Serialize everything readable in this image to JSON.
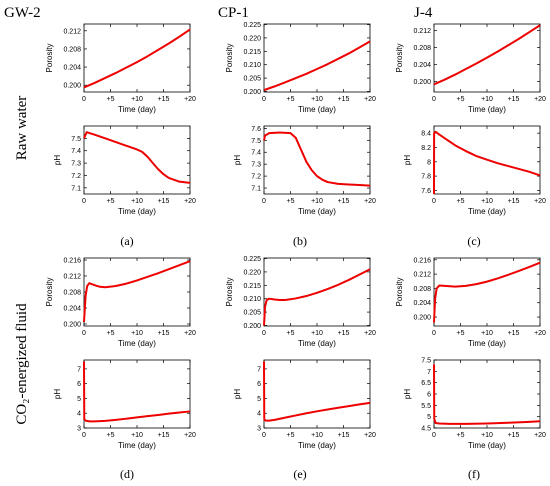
{
  "figure": {
    "columns": [
      "GW-2",
      "CP-1",
      "J-4"
    ],
    "rows": [
      "Raw water",
      "CO₂-energized fluid"
    ],
    "panel_labels": [
      "(a)",
      "(b)",
      "(c)",
      "(d)",
      "(e)",
      "(f)"
    ],
    "line_color": "#ee0000"
  },
  "chart_data": [
    {
      "type": "line",
      "panel": "(a)",
      "column": "GW-2",
      "row": "Raw water",
      "quantity": "Porosity",
      "xlabel": "Time (day)",
      "ylabel": "Porosity",
      "xlim": [
        0,
        20
      ],
      "ylim": [
        0.1985,
        0.2135
      ],
      "xticks": [
        0,
        5,
        10,
        15,
        20
      ],
      "xtick_labels": [
        "0",
        "+5",
        "+10",
        "+15",
        "+20"
      ],
      "yticks": [
        0.2,
        0.204,
        0.208,
        0.212
      ],
      "ytick_labels": [
        "0.200",
        "0.204",
        "0.208",
        "0.212"
      ],
      "x": [
        0,
        2,
        4,
        6,
        8,
        10,
        12,
        14,
        16,
        18,
        20
      ],
      "y": [
        0.1995,
        0.2005,
        0.2016,
        0.2027,
        0.2039,
        0.2051,
        0.2064,
        0.2078,
        0.2092,
        0.2107,
        0.2123
      ]
    },
    {
      "type": "line",
      "panel": "(a)",
      "column": "GW-2",
      "row": "Raw water",
      "quantity": "pH",
      "xlabel": "Time (day)",
      "ylabel": "pH",
      "xlim": [
        0,
        20
      ],
      "ylim": [
        7.05,
        7.6
      ],
      "xticks": [
        0,
        5,
        10,
        15,
        20
      ],
      "xtick_labels": [
        "0",
        "+5",
        "+10",
        "+15",
        "+20"
      ],
      "yticks": [
        7.1,
        7.2,
        7.3,
        7.4,
        7.5
      ],
      "ytick_labels": [
        "7.1",
        "7.2",
        "7.3",
        "7.4",
        "7.5"
      ],
      "x": [
        0,
        0.5,
        2,
        4,
        6,
        8,
        10,
        11,
        12,
        13,
        14,
        15,
        16,
        18,
        20
      ],
      "y": [
        7.5,
        7.55,
        7.53,
        7.5,
        7.47,
        7.44,
        7.41,
        7.39,
        7.35,
        7.3,
        7.25,
        7.21,
        7.18,
        7.15,
        7.14
      ]
    },
    {
      "type": "line",
      "panel": "(b)",
      "column": "CP-1",
      "row": "Raw water",
      "quantity": "Porosity",
      "xlabel": "Time (day)",
      "ylabel": "Porosity",
      "xlim": [
        0,
        20
      ],
      "ylim": [
        0.1998,
        0.2252
      ],
      "xticks": [
        0,
        5,
        10,
        15,
        20
      ],
      "xtick_labels": [
        "0",
        "+5",
        "+10",
        "+15",
        "+20"
      ],
      "yticks": [
        0.2,
        0.205,
        0.21,
        0.215,
        0.22,
        0.225
      ],
      "ytick_labels": [
        "0.200",
        "0.205",
        "0.210",
        "0.215",
        "0.220",
        "0.225"
      ],
      "x": [
        0,
        2,
        4,
        6,
        8,
        10,
        12,
        14,
        16,
        18,
        20
      ],
      "y": [
        0.2005,
        0.2019,
        0.2034,
        0.205,
        0.2066,
        0.2084,
        0.2102,
        0.2122,
        0.2142,
        0.2164,
        0.2187
      ]
    },
    {
      "type": "line",
      "panel": "(b)",
      "column": "CP-1",
      "row": "Raw water",
      "quantity": "pH",
      "xlabel": "Time (day)",
      "ylabel": "pH",
      "xlim": [
        0,
        20
      ],
      "ylim": [
        7.05,
        7.62
      ],
      "xticks": [
        0,
        5,
        10,
        15,
        20
      ],
      "xtick_labels": [
        "0",
        "+5",
        "+10",
        "+15",
        "+20"
      ],
      "yticks": [
        7.1,
        7.2,
        7.3,
        7.4,
        7.5,
        7.6
      ],
      "ytick_labels": [
        "7.1",
        "7.2",
        "7.3",
        "7.4",
        "7.5",
        "7.6"
      ],
      "x": [
        0,
        0.2,
        1,
        3,
        5,
        6,
        7,
        8,
        9,
        10,
        11,
        12,
        14,
        16,
        18,
        20
      ],
      "y": [
        7.5,
        7.54,
        7.56,
        7.565,
        7.56,
        7.52,
        7.42,
        7.32,
        7.25,
        7.2,
        7.17,
        7.15,
        7.135,
        7.13,
        7.125,
        7.12
      ]
    },
    {
      "type": "line",
      "panel": "(c)",
      "column": "J-4",
      "row": "Raw water",
      "quantity": "Porosity",
      "xlabel": "Time (day)",
      "ylabel": "Porosity",
      "xlim": [
        0,
        20
      ],
      "ylim": [
        0.1975,
        0.2135
      ],
      "xticks": [
        0,
        5,
        10,
        15,
        20
      ],
      "xtick_labels": [
        "0",
        "+5",
        "+10",
        "+15",
        "+20"
      ],
      "yticks": [
        0.2,
        0.204,
        0.208,
        0.212
      ],
      "ytick_labels": [
        "0.200",
        "0.204",
        "0.208",
        "0.212"
      ],
      "x": [
        0,
        2,
        4,
        6,
        8,
        10,
        12,
        14,
        16,
        18,
        20
      ],
      "y": [
        0.1993,
        0.2004,
        0.2016,
        0.2029,
        0.2042,
        0.2056,
        0.207,
        0.2085,
        0.21,
        0.2116,
        0.2132
      ]
    },
    {
      "type": "line",
      "panel": "(c)",
      "column": "J-4",
      "row": "Raw water",
      "quantity": "pH",
      "xlabel": "Time (day)",
      "ylabel": "pH",
      "xlim": [
        0,
        20
      ],
      "ylim": [
        7.55,
        8.5
      ],
      "xticks": [
        0,
        5,
        10,
        15,
        20
      ],
      "xtick_labels": [
        "0",
        "+5",
        "+10",
        "+15",
        "+20"
      ],
      "yticks": [
        7.6,
        7.8,
        8.0,
        8.2,
        8.4
      ],
      "ytick_labels": [
        "7.6",
        "7.8",
        "8",
        "8.2",
        "8.4"
      ],
      "x": [
        0,
        0.02,
        0.3,
        1,
        2,
        4,
        6,
        8,
        10,
        12,
        14,
        16,
        18,
        20
      ],
      "y": [
        7.55,
        8.4,
        8.42,
        8.38,
        8.33,
        8.23,
        8.15,
        8.08,
        8.03,
        7.98,
        7.94,
        7.9,
        7.86,
        7.81
      ]
    },
    {
      "type": "line",
      "panel": "(d)",
      "column": "GW-2",
      "row": "CO₂-energized fluid",
      "quantity": "Porosity",
      "xlabel": "Time (day)",
      "ylabel": "Porosity",
      "xlim": [
        0,
        20
      ],
      "ylim": [
        0.1995,
        0.2165
      ],
      "xticks": [
        0,
        5,
        10,
        15,
        20
      ],
      "xtick_labels": [
        "0",
        "+5",
        "+10",
        "+15",
        "+20"
      ],
      "yticks": [
        0.2,
        0.204,
        0.208,
        0.212,
        0.216
      ],
      "ytick_labels": [
        "0.200",
        "0.204",
        "0.208",
        "0.212",
        "0.216"
      ],
      "x": [
        0,
        0.3,
        0.6,
        1,
        2,
        3,
        4,
        6,
        8,
        10,
        12,
        14,
        16,
        18,
        20
      ],
      "y": [
        0.2005,
        0.207,
        0.2095,
        0.2102,
        0.2097,
        0.2093,
        0.2092,
        0.2095,
        0.2101,
        0.2109,
        0.2118,
        0.2127,
        0.2137,
        0.2147,
        0.2157
      ]
    },
    {
      "type": "line",
      "panel": "(d)",
      "column": "GW-2",
      "row": "CO₂-energized fluid",
      "quantity": "pH",
      "xlabel": "Time (day)",
      "ylabel": "pH",
      "xlim": [
        0,
        20
      ],
      "ylim": [
        3,
        7.6
      ],
      "xticks": [
        0,
        5,
        10,
        15,
        20
      ],
      "xtick_labels": [
        "0",
        "+5",
        "+10",
        "+15",
        "+20"
      ],
      "yticks": [
        3,
        4,
        5,
        6,
        7
      ],
      "ytick_labels": [
        "3",
        "4",
        "5",
        "6",
        "7"
      ],
      "x": [
        0,
        0.05,
        0.3,
        1,
        2,
        4,
        6,
        8,
        10,
        12,
        14,
        16,
        18,
        20
      ],
      "y": [
        7.5,
        3.6,
        3.5,
        3.45,
        3.45,
        3.48,
        3.55,
        3.63,
        3.72,
        3.8,
        3.88,
        3.97,
        4.05,
        4.12
      ]
    },
    {
      "type": "line",
      "panel": "(e)",
      "column": "CP-1",
      "row": "CO₂-energized fluid",
      "quantity": "Porosity",
      "xlabel": "Time (day)",
      "ylabel": "Porosity",
      "xlim": [
        0,
        20
      ],
      "ylim": [
        0.1998,
        0.2252
      ],
      "xticks": [
        0,
        5,
        10,
        15,
        20
      ],
      "xtick_labels": [
        "0",
        "+5",
        "+10",
        "+15",
        "+20"
      ],
      "yticks": [
        0.2,
        0.205,
        0.21,
        0.215,
        0.22,
        0.225
      ],
      "ytick_labels": [
        "0.200",
        "0.205",
        "0.210",
        "0.215",
        "0.220",
        "0.225"
      ],
      "x": [
        0,
        0.2,
        0.5,
        1,
        2,
        3,
        4,
        6,
        8,
        10,
        12,
        14,
        16,
        18,
        20
      ],
      "y": [
        0.2,
        0.207,
        0.2095,
        0.21,
        0.2097,
        0.2095,
        0.2095,
        0.2101,
        0.211,
        0.2122,
        0.2136,
        0.2152,
        0.217,
        0.219,
        0.221
      ]
    },
    {
      "type": "line",
      "panel": "(e)",
      "column": "CP-1",
      "row": "CO₂-energized fluid",
      "quantity": "pH",
      "xlabel": "Time (day)",
      "ylabel": "pH",
      "xlim": [
        0,
        20
      ],
      "ylim": [
        3,
        7.6
      ],
      "xticks": [
        0,
        5,
        10,
        15,
        20
      ],
      "xtick_labels": [
        "0",
        "+5",
        "+10",
        "+15",
        "+20"
      ],
      "yticks": [
        3,
        4,
        5,
        6,
        7
      ],
      "ytick_labels": [
        "3",
        "4",
        "5",
        "6",
        "7"
      ],
      "x": [
        0,
        0.05,
        0.3,
        1,
        2,
        4,
        6,
        8,
        10,
        12,
        14,
        16,
        18,
        20
      ],
      "y": [
        7.5,
        3.6,
        3.5,
        3.5,
        3.55,
        3.7,
        3.85,
        4.0,
        4.13,
        4.25,
        4.37,
        4.48,
        4.6,
        4.7
      ]
    },
    {
      "type": "line",
      "panel": "(f)",
      "column": "J-4",
      "row": "CO₂-energized fluid",
      "quantity": "Porosity",
      "xlabel": "Time (day)",
      "ylabel": "Porosity",
      "xlim": [
        0,
        20
      ],
      "ylim": [
        0.1975,
        0.2165
      ],
      "xticks": [
        0,
        5,
        10,
        15,
        20
      ],
      "xtick_labels": [
        "0",
        "+5",
        "+10",
        "+15",
        "+20"
      ],
      "yticks": [
        0.2,
        0.204,
        0.208,
        0.212,
        0.216
      ],
      "ytick_labels": [
        "0.200",
        "0.204",
        "0.208",
        "0.212",
        "0.216"
      ],
      "x": [
        0,
        0.2,
        0.5,
        1,
        2,
        4,
        6,
        8,
        10,
        12,
        14,
        16,
        18,
        20
      ],
      "y": [
        0.1985,
        0.205,
        0.208,
        0.2088,
        0.2087,
        0.2085,
        0.2087,
        0.2092,
        0.2099,
        0.2108,
        0.2118,
        0.2129,
        0.214,
        0.2152
      ]
    },
    {
      "type": "line",
      "panel": "(f)",
      "column": "J-4",
      "row": "CO₂-energized fluid",
      "quantity": "pH",
      "xlabel": "Time (day)",
      "ylabel": "pH",
      "xlim": [
        0,
        20
      ],
      "ylim": [
        4.5,
        7.5
      ],
      "xticks": [
        0,
        5,
        10,
        15,
        20
      ],
      "xtick_labels": [
        "0",
        "+5",
        "+10",
        "+15",
        "+20"
      ],
      "yticks": [
        4.5,
        5,
        5.5,
        6,
        6.5,
        7,
        7.5
      ],
      "ytick_labels": [
        "4.5",
        "5",
        "5.5",
        "6",
        "6.5",
        "7",
        "7.5"
      ],
      "x": [
        0,
        0.05,
        0.3,
        1,
        3,
        6,
        10,
        14,
        18,
        20
      ],
      "y": [
        7.3,
        4.9,
        4.72,
        4.7,
        4.68,
        4.68,
        4.7,
        4.73,
        4.77,
        4.8
      ]
    }
  ]
}
